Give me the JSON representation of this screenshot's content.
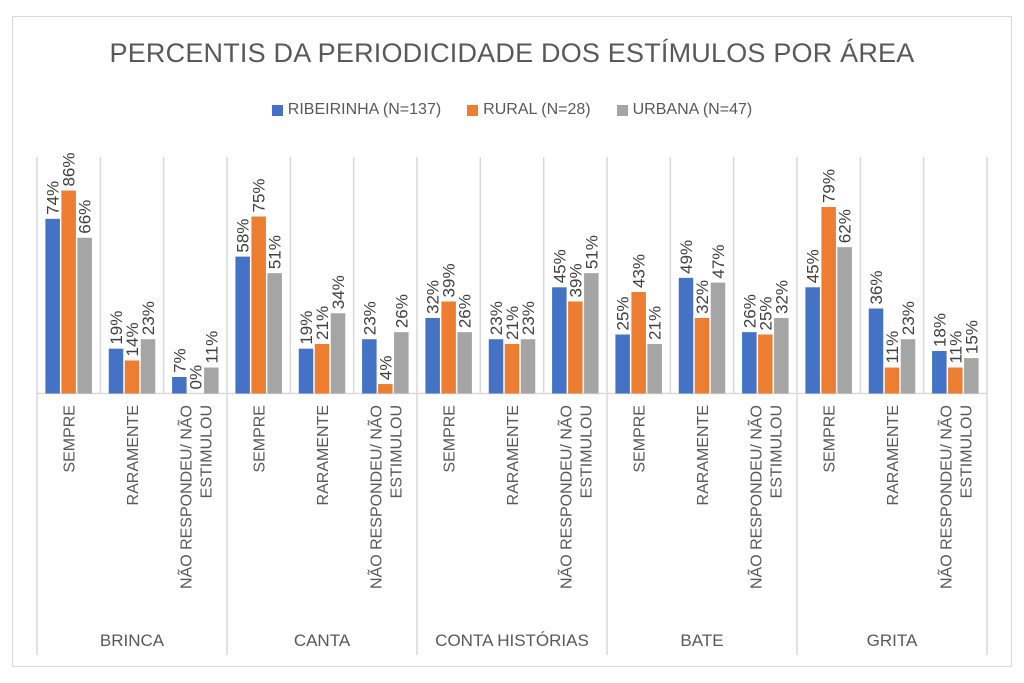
{
  "chart_data": {
    "type": "bar",
    "title": "PERCENTIS DA PERIODICIDADE DOS ESTÍMULOS POR ÁREA",
    "xlabel": "",
    "ylabel": "",
    "ylim": [
      0,
      100
    ],
    "grid": false,
    "legend_position": "top",
    "value_format": "percent",
    "groups": [
      "BRINCA",
      "CANTA",
      "CONTA HISTÓRIAS",
      "BATE",
      "GRITA"
    ],
    "subcategories": [
      "SEMPRE",
      "RARAMENTE",
      "NÃO RESPONDEU/ NÃO ESTIMULOU"
    ],
    "subcategory_lines": [
      [
        "SEMPRE"
      ],
      [
        "RARAMENTE"
      ],
      [
        "NÃO RESPONDEU/ NÃO",
        "ESTIMULOU"
      ]
    ],
    "categories": [
      "BRINCA - SEMPRE",
      "BRINCA - RARAMENTE",
      "BRINCA - NÃO RESPONDEU/ NÃO ESTIMULOU",
      "CANTA - SEMPRE",
      "CANTA - RARAMENTE",
      "CANTA - NÃO RESPONDEU/ NÃO ESTIMULOU",
      "CONTA HISTÓRIAS - SEMPRE",
      "CONTA HISTÓRIAS - RARAMENTE",
      "CONTA HISTÓRIAS - NÃO RESPONDEU/ NÃO ESTIMULOU",
      "BATE - SEMPRE",
      "BATE - RARAMENTE",
      "BATE - NÃO RESPONDEU/ NÃO ESTIMULOU",
      "GRITA - SEMPRE",
      "GRITA - RARAMENTE",
      "GRITA - NÃO RESPONDEU/ NÃO ESTIMULOU"
    ],
    "series": [
      {
        "name": "RIBEIRINHA (N=137)",
        "color": "#4472c4",
        "values": [
          74,
          19,
          7,
          58,
          19,
          23,
          32,
          23,
          45,
          25,
          49,
          26,
          45,
          36,
          18
        ]
      },
      {
        "name": "RURAL (N=28)",
        "color": "#ed7d31",
        "values": [
          86,
          14,
          0,
          75,
          21,
          4,
          39,
          21,
          39,
          43,
          32,
          25,
          79,
          11,
          11
        ]
      },
      {
        "name": "URBANA (N=47)",
        "color": "#a5a5a5",
        "values": [
          66,
          23,
          11,
          51,
          34,
          26,
          26,
          23,
          51,
          21,
          47,
          32,
          62,
          23,
          15
        ]
      }
    ]
  }
}
